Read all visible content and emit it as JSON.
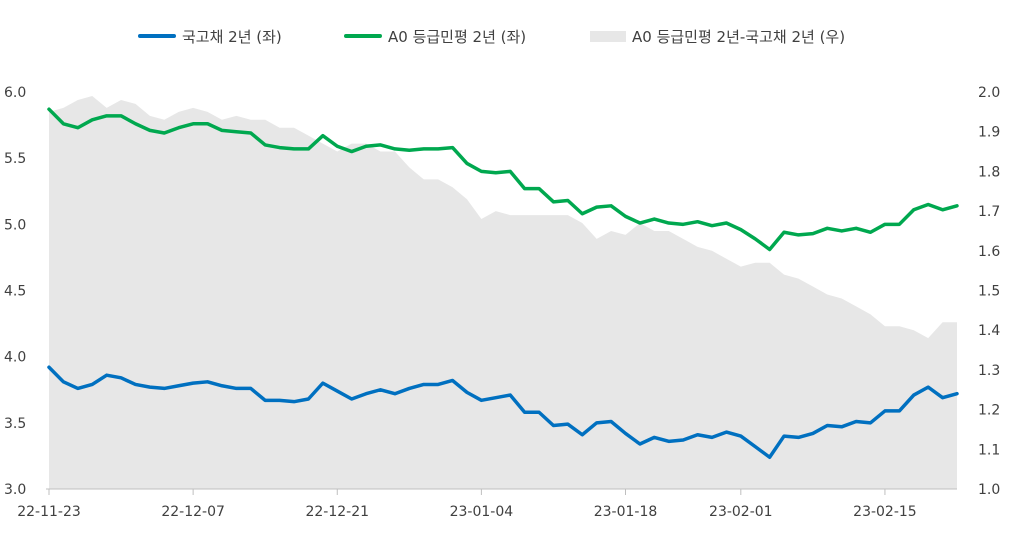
{
  "chart_data": {
    "type": "line",
    "x": [
      "22-11-23",
      "22-11-24",
      "22-11-25",
      "22-11-28",
      "22-11-29",
      "22-11-30",
      "22-12-01",
      "22-12-02",
      "22-12-05",
      "22-12-06",
      "22-12-07",
      "22-12-08",
      "22-12-09",
      "22-12-12",
      "22-12-13",
      "22-12-14",
      "22-12-15",
      "22-12-16",
      "22-12-19",
      "22-12-20",
      "22-12-21",
      "22-12-22",
      "22-12-23",
      "22-12-26",
      "22-12-27",
      "22-12-28",
      "22-12-29",
      "22-12-30",
      "23-01-02",
      "23-01-03",
      "23-01-04",
      "23-01-05",
      "23-01-06",
      "23-01-09",
      "23-01-10",
      "23-01-11",
      "23-01-12",
      "23-01-13",
      "23-01-16",
      "23-01-17",
      "23-01-18",
      "23-01-19",
      "23-01-20",
      "23-01-25",
      "23-01-26",
      "23-01-27",
      "23-01-30",
      "23-01-31",
      "23-02-01",
      "23-02-02",
      "23-02-03",
      "23-02-06",
      "23-02-07",
      "23-02-08",
      "23-02-09",
      "23-02-10",
      "23-02-13",
      "23-02-14",
      "23-02-15",
      "23-02-16",
      "23-02-17",
      "23-02-20",
      "23-02-21",
      "23-02-22"
    ],
    "x_tick_labels": [
      "22-11-23",
      "22-12-07",
      "22-12-21",
      "23-01-04",
      "23-01-18",
      "23-02-01",
      "23-02-15"
    ],
    "series": [
      {
        "name": "국고채 2년 (좌)",
        "axis": "left",
        "color": "#0070c0",
        "values": [
          3.92,
          3.81,
          3.76,
          3.79,
          3.86,
          3.84,
          3.79,
          3.77,
          3.76,
          3.78,
          3.8,
          3.81,
          3.78,
          3.76,
          3.76,
          3.67,
          3.67,
          3.66,
          3.68,
          3.8,
          3.74,
          3.68,
          3.72,
          3.75,
          3.72,
          3.76,
          3.79,
          3.79,
          3.82,
          3.73,
          3.67,
          3.69,
          3.71,
          3.58,
          3.58,
          3.48,
          3.49,
          3.41,
          3.5,
          3.51,
          3.42,
          3.34,
          3.39,
          3.36,
          3.37,
          3.41,
          3.39,
          3.43,
          3.4,
          3.32,
          3.24,
          3.4,
          3.39,
          3.42,
          3.48,
          3.47,
          3.51,
          3.5,
          3.59,
          3.59,
          3.71,
          3.77,
          3.69,
          3.72
        ]
      },
      {
        "name": "A0 등급민평 2년 (좌)",
        "axis": "left",
        "color": "#00a84f",
        "values": [
          5.87,
          5.76,
          5.73,
          5.79,
          5.82,
          5.82,
          5.76,
          5.71,
          5.69,
          5.73,
          5.76,
          5.76,
          5.71,
          5.7,
          5.69,
          5.6,
          5.58,
          5.57,
          5.57,
          5.67,
          5.59,
          5.55,
          5.59,
          5.6,
          5.57,
          5.56,
          5.57,
          5.57,
          5.58,
          5.46,
          5.4,
          5.39,
          5.4,
          5.27,
          5.27,
          5.17,
          5.18,
          5.08,
          5.13,
          5.14,
          5.06,
          5.01,
          5.04,
          5.01,
          5.0,
          5.02,
          4.99,
          5.01,
          4.96,
          4.89,
          4.81,
          4.94,
          4.92,
          4.93,
          4.97,
          4.95,
          4.97,
          4.94,
          5.0,
          5.0,
          5.11,
          5.15,
          5.11,
          5.14
        ]
      },
      {
        "name": "A0 등급민평 2년-국고채 2년 (우)",
        "axis": "right",
        "type": "area",
        "color": "#e7e7e7",
        "values": [
          1.95,
          1.96,
          1.98,
          1.99,
          1.96,
          1.98,
          1.97,
          1.94,
          1.93,
          1.95,
          1.96,
          1.95,
          1.93,
          1.94,
          1.93,
          1.93,
          1.91,
          1.91,
          1.89,
          1.87,
          1.85,
          1.87,
          1.87,
          1.85,
          1.85,
          1.81,
          1.78,
          1.78,
          1.76,
          1.73,
          1.68,
          1.7,
          1.69,
          1.69,
          1.69,
          1.69,
          1.69,
          1.67,
          1.63,
          1.65,
          1.64,
          1.67,
          1.65,
          1.65,
          1.63,
          1.61,
          1.6,
          1.58,
          1.56,
          1.57,
          1.57,
          1.54,
          1.53,
          1.51,
          1.49,
          1.48,
          1.46,
          1.44,
          1.41,
          1.41,
          1.4,
          1.38,
          1.42,
          1.42
        ]
      }
    ],
    "y_left": {
      "min": 3.0,
      "max": 6.0,
      "step": 0.5,
      "ticks": [
        "3.0",
        "3.5",
        "4.0",
        "4.5",
        "5.0",
        "5.5",
        "6.0"
      ]
    },
    "y_right": {
      "min": 1.0,
      "max": 2.0,
      "step": 0.1,
      "ticks": [
        "1.0",
        "1.1",
        "1.2",
        "1.3",
        "1.4",
        "1.5",
        "1.6",
        "1.7",
        "1.8",
        "1.9",
        "2.0"
      ]
    },
    "grid": false,
    "legend_position": "top"
  }
}
